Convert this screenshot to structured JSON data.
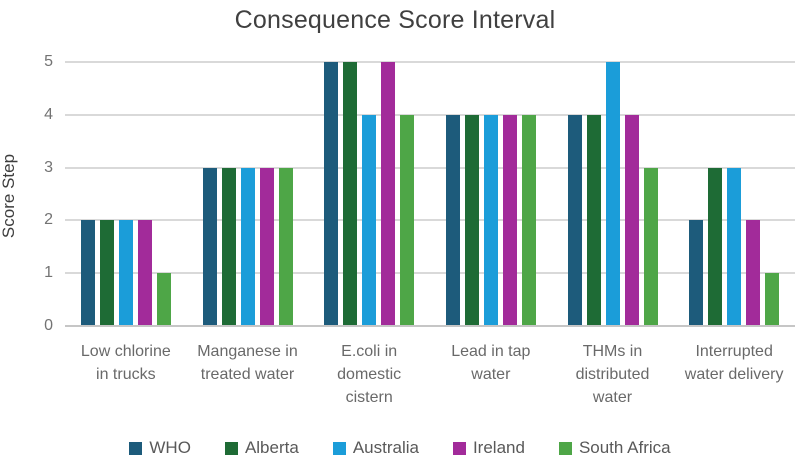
{
  "chart_data": {
    "type": "bar",
    "title": "Consequence Score Interval",
    "xlabel": "",
    "ylabel": "Score Step",
    "ylim": [
      0,
      5
    ],
    "yticks": [
      0,
      1,
      2,
      3,
      4,
      5
    ],
    "grid": true,
    "legend_position": "bottom",
    "categories": [
      "Low chlorine\nin trucks",
      "Manganese in\ntreated water",
      "E.coli in\ndomestic\ncistern",
      "Lead in tap\nwater",
      "THMs in\ndistributed\nwater",
      "Interrupted\nwater delivery"
    ],
    "series": [
      {
        "name": "WHO",
        "color": "#1D5B7B",
        "values": [
          2,
          3,
          5,
          4,
          4,
          2
        ]
      },
      {
        "name": "Alberta",
        "color": "#1E6B35",
        "values": [
          2,
          3,
          5,
          4,
          4,
          3
        ]
      },
      {
        "name": "Australia",
        "color": "#1B9DD9",
        "values": [
          2,
          3,
          4,
          4,
          5,
          3
        ]
      },
      {
        "name": "Ireland",
        "color": "#A22B9A",
        "values": [
          2,
          3,
          5,
          4,
          4,
          2
        ]
      },
      {
        "name": "South Africa",
        "color": "#4EA647",
        "values": [
          1,
          3,
          4,
          4,
          3,
          1
        ]
      }
    ]
  },
  "colors": {
    "background": "#FFFFFF",
    "title_text": "#404040",
    "axis_title_text": "#3D3D3D",
    "tick_text": "#737373",
    "category_text": "#696969",
    "legend_text": "#595959",
    "gridline": "#D9D9D9",
    "axis_line": "#C6C6C6"
  }
}
